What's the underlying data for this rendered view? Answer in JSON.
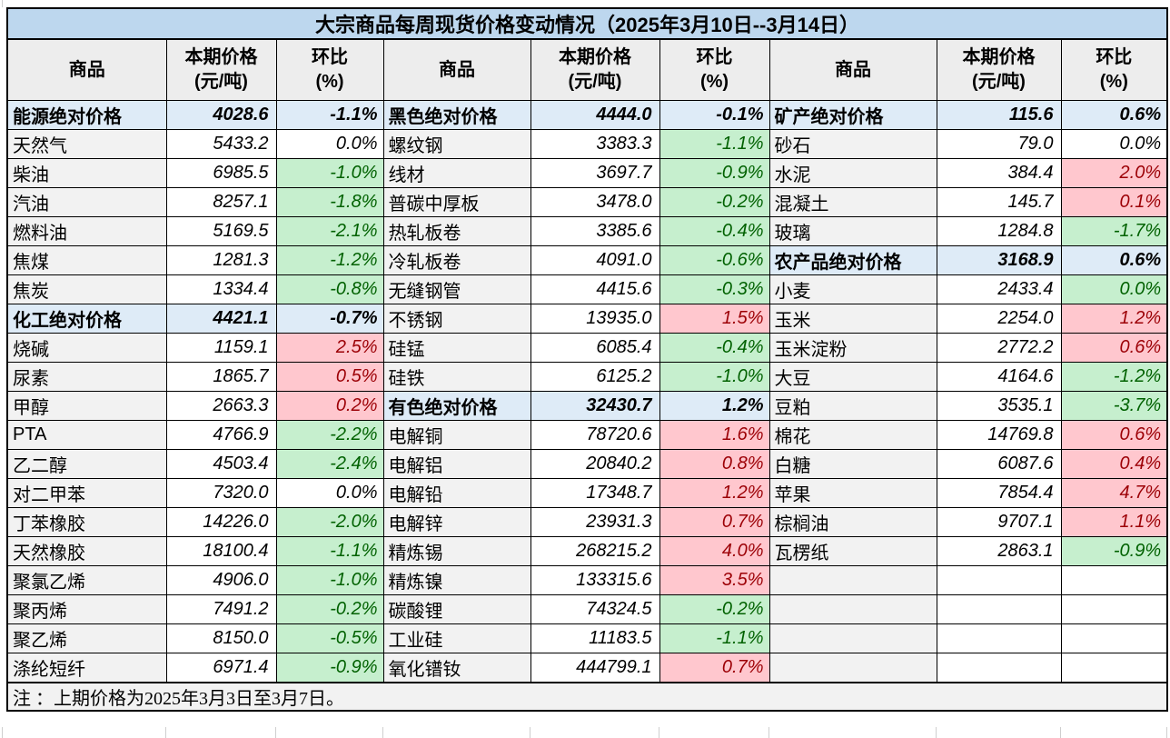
{
  "title": "大宗商品每周现货价格变动情况（2025年3月10日--3月14日）",
  "columns": {
    "commodity": "商品",
    "price1": "本期价格",
    "price2": "(元/吨)",
    "pct1": "环比",
    "pct2": "(%)"
  },
  "note": "注 ：上期价格为2025年3月3日至3月7日。",
  "colors": {
    "title_bg": "#BDD7EE",
    "header_bg": "#EDEDED",
    "section_bg": "#DEEBF7",
    "name_bg": "#F2F2F2",
    "note_bg": "#F2F2F2",
    "up_bg": "#FFC7CE",
    "up_text": "#9C0006",
    "down_bg": "#C6EFCE",
    "down_text": "#006100"
  },
  "groups": [
    {
      "rows": [
        {
          "name": "能源绝对价格",
          "price": "4028.6",
          "pct": "-1.1%",
          "tone": "section"
        },
        {
          "name": "天然气",
          "price": "5433.2",
          "pct": "0.0%",
          "tone": "flat"
        },
        {
          "name": "柴油",
          "price": "6985.5",
          "pct": "-1.0%",
          "tone": "down"
        },
        {
          "name": "汽油",
          "price": "8257.1",
          "pct": "-1.8%",
          "tone": "down"
        },
        {
          "name": "燃料油",
          "price": "5169.5",
          "pct": "-2.1%",
          "tone": "down"
        },
        {
          "name": "焦煤",
          "price": "1281.3",
          "pct": "-1.2%",
          "tone": "down"
        },
        {
          "name": "焦炭",
          "price": "1334.4",
          "pct": "-0.8%",
          "tone": "down"
        },
        {
          "name": "化工绝对价格",
          "price": "4421.1",
          "pct": "-0.7%",
          "tone": "section"
        },
        {
          "name": "烧碱",
          "price": "1159.1",
          "pct": "2.5%",
          "tone": "up"
        },
        {
          "name": "尿素",
          "price": "1865.7",
          "pct": "0.5%",
          "tone": "up"
        },
        {
          "name": "甲醇",
          "price": "2663.3",
          "pct": "0.2%",
          "tone": "up"
        },
        {
          "name": "PTA",
          "price": "4766.9",
          "pct": "-2.2%",
          "tone": "down"
        },
        {
          "name": "乙二醇",
          "price": "4503.4",
          "pct": "-2.4%",
          "tone": "down"
        },
        {
          "name": "对二甲苯",
          "price": "7320.0",
          "pct": "0.0%",
          "tone": "flat"
        },
        {
          "name": "丁苯橡胶",
          "price": "14226.0",
          "pct": "-2.0%",
          "tone": "down"
        },
        {
          "name": "天然橡胶",
          "price": "18100.4",
          "pct": "-1.1%",
          "tone": "down"
        },
        {
          "name": "聚氯乙烯",
          "price": "4906.0",
          "pct": "-1.0%",
          "tone": "down"
        },
        {
          "name": "聚丙烯",
          "price": "7491.2",
          "pct": "-0.2%",
          "tone": "down"
        },
        {
          "name": "聚乙烯",
          "price": "8150.0",
          "pct": "-0.5%",
          "tone": "down"
        },
        {
          "name": "涤纶短纤",
          "price": "6971.4",
          "pct": "-0.9%",
          "tone": "down"
        }
      ]
    },
    {
      "rows": [
        {
          "name": "黑色绝对价格",
          "price": "4444.0",
          "pct": "-0.1%",
          "tone": "section"
        },
        {
          "name": "螺纹钢",
          "price": "3383.3",
          "pct": "-1.1%",
          "tone": "down"
        },
        {
          "name": "线材",
          "price": "3697.7",
          "pct": "-0.9%",
          "tone": "down"
        },
        {
          "name": "普碳中厚板",
          "price": "3478.0",
          "pct": "-0.2%",
          "tone": "down"
        },
        {
          "name": "热轧板卷",
          "price": "3385.6",
          "pct": "-0.4%",
          "tone": "down"
        },
        {
          "name": "冷轧板卷",
          "price": "4091.0",
          "pct": "-0.6%",
          "tone": "down"
        },
        {
          "name": "无缝钢管",
          "price": "4415.6",
          "pct": "-0.3%",
          "tone": "down"
        },
        {
          "name": "不锈钢",
          "price": "13935.0",
          "pct": "1.5%",
          "tone": "up"
        },
        {
          "name": "硅锰",
          "price": "6085.4",
          "pct": "-0.4%",
          "tone": "down"
        },
        {
          "name": "硅铁",
          "price": "6125.2",
          "pct": "-1.0%",
          "tone": "down"
        },
        {
          "name": "有色绝对价格",
          "price": "32430.7",
          "pct": "1.2%",
          "tone": "section"
        },
        {
          "name": "电解铜",
          "price": "78720.6",
          "pct": "1.6%",
          "tone": "up"
        },
        {
          "name": "电解铝",
          "price": "20840.2",
          "pct": "0.8%",
          "tone": "up"
        },
        {
          "name": "电解铅",
          "price": "17348.7",
          "pct": "1.2%",
          "tone": "up"
        },
        {
          "name": "电解锌",
          "price": "23931.3",
          "pct": "0.7%",
          "tone": "up"
        },
        {
          "name": "精炼锡",
          "price": "268215.2",
          "pct": "4.0%",
          "tone": "up"
        },
        {
          "name": "精炼镍",
          "price": "133315.6",
          "pct": "3.5%",
          "tone": "up"
        },
        {
          "name": "碳酸锂",
          "price": "74324.5",
          "pct": "-0.2%",
          "tone": "down"
        },
        {
          "name": "工业硅",
          "price": "11183.5",
          "pct": "-1.1%",
          "tone": "down"
        },
        {
          "name": "氧化镨钕",
          "price": "444799.1",
          "pct": "0.7%",
          "tone": "up"
        }
      ]
    },
    {
      "rows": [
        {
          "name": "矿产绝对价格",
          "price": "115.6",
          "pct": "0.6%",
          "tone": "section"
        },
        {
          "name": "砂石",
          "price": "79.0",
          "pct": "0.0%",
          "tone": "flat"
        },
        {
          "name": "水泥",
          "price": "384.4",
          "pct": "2.0%",
          "tone": "up"
        },
        {
          "name": "混凝土",
          "price": "145.7",
          "pct": "0.1%",
          "tone": "up"
        },
        {
          "name": "玻璃",
          "price": "1284.8",
          "pct": "-1.7%",
          "tone": "down"
        },
        {
          "name": "农产品绝对价格",
          "price": "3168.9",
          "pct": "0.6%",
          "tone": "section"
        },
        {
          "name": "小麦",
          "price": "2433.4",
          "pct": "0.0%",
          "tone": "down"
        },
        {
          "name": "玉米",
          "price": "2254.0",
          "pct": "1.2%",
          "tone": "up"
        },
        {
          "name": "玉米淀粉",
          "price": "2772.2",
          "pct": "0.6%",
          "tone": "up"
        },
        {
          "name": "大豆",
          "price": "4164.6",
          "pct": "-1.2%",
          "tone": "down"
        },
        {
          "name": "豆粕",
          "price": "3535.1",
          "pct": "-3.7%",
          "tone": "down"
        },
        {
          "name": "棉花",
          "price": "14769.8",
          "pct": "0.6%",
          "tone": "up"
        },
        {
          "name": "白糖",
          "price": "6087.6",
          "pct": "0.4%",
          "tone": "up"
        },
        {
          "name": "苹果",
          "price": "7854.4",
          "pct": "4.7%",
          "tone": "up"
        },
        {
          "name": "棕榈油",
          "price": "9707.1",
          "pct": "1.1%",
          "tone": "up"
        },
        {
          "name": "瓦楞纸",
          "price": "2863.1",
          "pct": "-0.9%",
          "tone": "down"
        },
        {
          "name": "",
          "price": "",
          "pct": "",
          "tone": "empty"
        },
        {
          "name": "",
          "price": "",
          "pct": "",
          "tone": "empty"
        },
        {
          "name": "",
          "price": "",
          "pct": "",
          "tone": "empty"
        },
        {
          "name": "",
          "price": "",
          "pct": "",
          "tone": "empty"
        }
      ]
    }
  ]
}
